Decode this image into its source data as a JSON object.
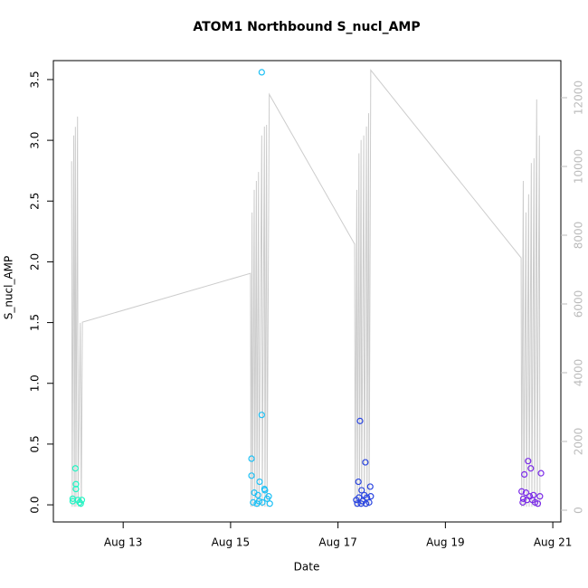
{
  "chart_data": {
    "type": "scatter",
    "title": "ATOM1 Northbound S_nucl_AMP",
    "x_label": "Date",
    "y_label": "S_nucl_AMP",
    "xlim": [
      11.7,
      21.15
    ],
    "ylim": [
      -0.141,
      3.656
    ],
    "y2lim": [
      -342,
      13079
    ],
    "xticks": [
      {
        "value": 13,
        "label": "Aug 13"
      },
      {
        "value": 15,
        "label": "Aug 15"
      },
      {
        "value": 17,
        "label": "Aug 17"
      },
      {
        "value": 19,
        "label": "Aug 19"
      },
      {
        "value": 21,
        "label": "Aug 21"
      }
    ],
    "yticks": [
      {
        "value": 0,
        "label": "0.0"
      },
      0.5,
      {
        "value": 1,
        "label": "1.0"
      },
      1.5,
      {
        "value": 2,
        "label": "2.0"
      },
      2.5,
      {
        "value": 3,
        "label": "3.0"
      },
      3.5
    ],
    "y2ticks": [
      0,
      2000,
      4000,
      6000,
      8000,
      10000,
      12000
    ],
    "y2_color": "#bbbbbb",
    "series": [
      {
        "style": "points",
        "color": "#22f5c4",
        "x": [
          12.06,
          12.11,
          12.12,
          12.12,
          12.16,
          12.19,
          12.06,
          12.23,
          12.21
        ],
        "values": [
          0.05,
          0.3,
          0.17,
          0.13,
          0.04,
          0.02,
          0.03,
          0.04,
          0.01
        ]
      },
      {
        "style": "points",
        "color": "#1ec0f5",
        "x": [
          15.58,
          15.39,
          15.39,
          15.58,
          15.54,
          15.44,
          15.51,
          15.63,
          15.64,
          15.68,
          15.71,
          15.42,
          15.49,
          15.59,
          15.73,
          15.53
        ],
        "values": [
          3.56,
          0.38,
          0.24,
          0.74,
          0.19,
          0.1,
          0.08,
          0.13,
          0.12,
          0.05,
          0.07,
          0.02,
          0.01,
          0.02,
          0.01,
          0.03
        ]
      },
      {
        "style": "points",
        "color": "#2a45e0",
        "x": [
          17.41,
          17.51,
          17.38,
          17.44,
          17.6,
          17.34,
          17.39,
          17.46,
          17.49,
          17.54,
          17.58,
          17.61,
          17.36,
          17.43,
          17.52
        ],
        "values": [
          0.69,
          0.35,
          0.19,
          0.12,
          0.15,
          0.04,
          0.06,
          0.03,
          0.08,
          0.06,
          0.02,
          0.07,
          0.01,
          0.01,
          0.01
        ]
      },
      {
        "style": "points",
        "color": "#7b2be8",
        "x": [
          20.54,
          20.59,
          20.78,
          20.47,
          20.42,
          20.5,
          20.45,
          20.52,
          20.57,
          20.62,
          20.67,
          20.72,
          20.76,
          20.44,
          20.64
        ],
        "values": [
          0.36,
          0.3,
          0.26,
          0.25,
          0.11,
          0.1,
          0.05,
          0.04,
          0.07,
          0.04,
          0.02,
          0.01,
          0.07,
          0.02,
          0.08
        ]
      },
      {
        "style": "line",
        "axis": "y2",
        "color": "#cccccc",
        "x": [
          12.04,
          12.05,
          12.08,
          12.09,
          12.11,
          12.12,
          12.15,
          12.16,
          12.2,
          12.22,
          12.24,
          15.37,
          15.38,
          15.4,
          15.41,
          15.44,
          15.45,
          15.48,
          15.49,
          15.52,
          15.53,
          15.58,
          15.59,
          15.63,
          15.64,
          15.67,
          15.68,
          15.72,
          17.31,
          17.32,
          17.35,
          17.36,
          17.39,
          17.4,
          17.43,
          17.44,
          17.48,
          17.49,
          17.53,
          17.54,
          17.57,
          17.58,
          17.61,
          20.41,
          20.42,
          20.45,
          20.46,
          20.5,
          20.51,
          20.55,
          20.56,
          20.6,
          20.61,
          20.65,
          20.66,
          20.7,
          20.71,
          20.75,
          20.76
        ],
        "values": [
          10150,
          100,
          10900,
          100,
          11150,
          100,
          11450,
          100,
          5450,
          100,
          5470,
          6890,
          100,
          8660,
          100,
          9320,
          100,
          9580,
          100,
          9840,
          100,
          10900,
          100,
          11160,
          100,
          11210,
          100,
          12100,
          7740,
          100,
          9320,
          100,
          10380,
          100,
          10770,
          100,
          10900,
          100,
          11160,
          100,
          11550,
          100,
          12800,
          7340,
          100,
          9580,
          100,
          8660,
          100,
          9190,
          100,
          10100,
          100,
          10240,
          100,
          11950,
          100,
          10900,
          100
        ]
      }
    ]
  }
}
